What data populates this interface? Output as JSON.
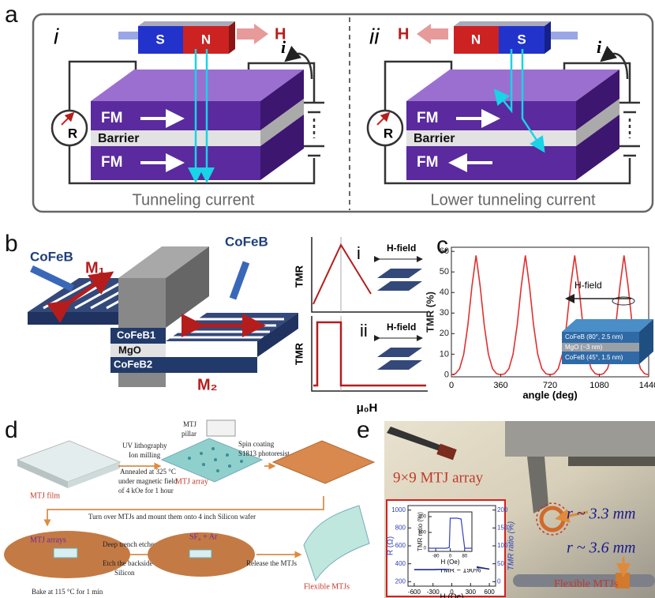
{
  "panel_labels": [
    "a",
    "b",
    "c",
    "d",
    "e"
  ],
  "panel_a": {
    "i": {
      "label": "i",
      "magnet": [
        "S",
        "N"
      ],
      "field": "H",
      "current": "i",
      "meter": "R",
      "layers": [
        "FM",
        "Barrier",
        "FM"
      ],
      "caption": "Tunneling current"
    },
    "ii": {
      "label": "ii",
      "magnet": [
        "N",
        "S"
      ],
      "field": "H",
      "current": "i",
      "meter": "R",
      "layers": [
        "FM",
        "Barrier",
        "FM"
      ],
      "caption": "Lower tunneling current"
    }
  },
  "panel_b": {
    "electrodes": [
      "CoFeB",
      "CoFeB"
    ],
    "moments": [
      "M₁",
      "M₂"
    ],
    "layers": [
      "CoFeB1",
      "MgO",
      "CoFeB2"
    ],
    "insets": [
      {
        "label": "i",
        "ylabel": "TMR",
        "field": "H-field"
      },
      {
        "label": "ii",
        "ylabel": "TMR",
        "field": "H-field"
      }
    ],
    "xlabel": "μ₀H"
  },
  "panel_c": {
    "field": "H-field",
    "stack": [
      "CoFeB (80°, 2.5 nm)",
      "MgO (~3 nm)",
      "CoFeB (45°, 1.5 nm)"
    ]
  },
  "panel_d": {
    "film": "MTJ film",
    "step1": [
      "UV lithography",
      "Ion milling",
      "Annealed at 325 °C",
      "under magnetic field",
      "of 4 kOe for 1 hour"
    ],
    "pillar": [
      "MTJ",
      "pillar"
    ],
    "coat": [
      "Spin coating",
      "S1813 photoresist"
    ],
    "array": "MTJ array",
    "mount": "Turn over MTJs and mount them onto 4 inch Silicon wafer",
    "arrays": "MTJ arrays",
    "etch": [
      "Deep trench etcher",
      "Etch the backside",
      "Silicon"
    ],
    "gas": "SF₆ + Ar",
    "release": "Release the MTJs",
    "flexible": "Flexible MTJs",
    "bake": "Bake at 115 °C for 1 min"
  },
  "panel_e": {
    "array": "9×9 MTJ array",
    "radii": [
      "r ~ 3.3 mm",
      "r ~ 3.6 mm"
    ],
    "flexible": "Flexible MTJs"
  },
  "chart_data": [
    {
      "type": "line",
      "xlabel": "angle (deg)",
      "ylabel": "TMR  (%)",
      "x": [
        0,
        30,
        60,
        90,
        120,
        150,
        180,
        210,
        240,
        270,
        300,
        330,
        360,
        390,
        420,
        450,
        480,
        510,
        540,
        570,
        600,
        630,
        660,
        690,
        720,
        750,
        780,
        810,
        840,
        870,
        900,
        930,
        960,
        990,
        1020,
        1050,
        1080,
        1110,
        1140,
        1170,
        1200,
        1230,
        1260,
        1290,
        1320,
        1350,
        1380,
        1410,
        1440
      ],
      "series": [
        {
          "color": "#e03030",
          "values": [
            0,
            0.5,
            3,
            10,
            24,
            43,
            58,
            43,
            24,
            10,
            3,
            0.5,
            0,
            0.5,
            3,
            10,
            24,
            43,
            58,
            43,
            24,
            10,
            3,
            0.5,
            0,
            0.5,
            3,
            10,
            24,
            43,
            58,
            43,
            24,
            10,
            3,
            0.5,
            0,
            0.5,
            3,
            10,
            24,
            43,
            58,
            43,
            24,
            10,
            3,
            0.5,
            0
          ]
        }
      ],
      "xlim": [
        0,
        1440
      ],
      "ylim": [
        -1,
        62
      ],
      "xticks": [
        0,
        360,
        720,
        1080,
        1440
      ],
      "yticks": [
        0,
        10,
        20,
        30,
        40,
        50,
        60
      ]
    },
    {
      "type": "line",
      "xlabel": "H (Oe)",
      "ylabel": "R (Ω)",
      "y2label": "TMR ratio (%)",
      "annotation": "TMR ~ 190%",
      "x": [
        -600,
        -300,
        -100,
        -40,
        -10,
        0,
        10,
        30,
        60,
        100,
        150,
        200,
        300,
        600
      ],
      "series": [
        {
          "color": "#3340c8",
          "values": [
            335,
            335,
            338,
            345,
            360,
            880,
            940,
            950,
            950,
            930,
            700,
            480,
            380,
            340
          ]
        },
        {
          "color": "#1a237e",
          "values": [
            335,
            335,
            340,
            360,
            920,
            940,
            950,
            950,
            950,
            900,
            620,
            440,
            370,
            340
          ]
        }
      ],
      "xlim": [
        -700,
        700
      ],
      "ylim": [
        150,
        1050
      ],
      "y2lim": [
        -12.5,
        212.5
      ],
      "xticks": [
        -600,
        -300,
        0,
        300,
        600
      ],
      "yticks": [
        200,
        400,
        600,
        800,
        1000
      ],
      "y2ticks": [
        0,
        50,
        100,
        150,
        200
      ]
    },
    {
      "type": "line",
      "xlabel": "H (Oe)",
      "ylabel": "TMR ratio (%)",
      "x": [
        -120,
        -60,
        -20,
        -5,
        0,
        20,
        40,
        60,
        80,
        120
      ],
      "series": [
        {
          "color": "#3340c8",
          "values": [
            0,
            0,
            0,
            5,
            190,
            190,
            190,
            185,
            0,
            0
          ]
        }
      ],
      "xlim": [
        -120,
        120
      ],
      "ylim": [
        -20,
        230
      ],
      "xticks": [
        -80,
        0,
        80
      ],
      "yticks": [
        0,
        100,
        200
      ]
    }
  ]
}
